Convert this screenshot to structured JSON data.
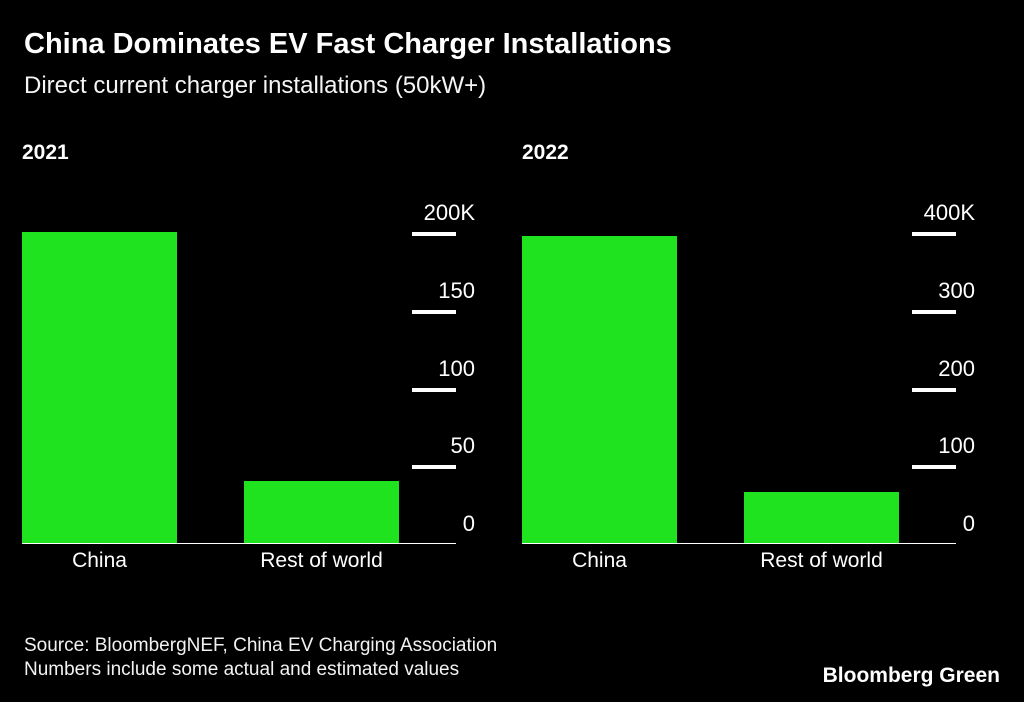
{
  "header": {
    "title": "China Dominates EV Fast Charger Installations",
    "subtitle": "Direct current charger installations (50kW+)"
  },
  "footer": {
    "source_line1": "Source: BloombergNEF, China EV Charging Association",
    "source_line2": "Numbers include some actual and estimated values",
    "brand": "Bloomberg Green"
  },
  "colors": {
    "background": "#000000",
    "bar": "#20e320",
    "text": "#ffffff"
  },
  "chart_data": [
    {
      "type": "bar",
      "title": "2021",
      "unit": "thousand installations",
      "categories": [
        "China",
        "Rest of world"
      ],
      "values": [
        200,
        40
      ],
      "xlabel": "",
      "ylabel": "",
      "ylim": [
        0,
        200
      ],
      "axis_side": "right",
      "grid": false,
      "legend": "none",
      "yticks": [
        {
          "value": 0,
          "label": "0"
        },
        {
          "value": 50,
          "label": "50"
        },
        {
          "value": 100,
          "label": "100"
        },
        {
          "value": 150,
          "label": "150"
        },
        {
          "value": 200,
          "label": "200K"
        }
      ]
    },
    {
      "type": "bar",
      "title": "2022",
      "unit": "thousand installations",
      "categories": [
        "China",
        "Rest of world"
      ],
      "values": [
        395,
        65
      ],
      "xlabel": "",
      "ylabel": "",
      "ylim": [
        0,
        400
      ],
      "axis_side": "right",
      "grid": false,
      "legend": "none",
      "yticks": [
        {
          "value": 0,
          "label": "0"
        },
        {
          "value": 100,
          "label": "100"
        },
        {
          "value": 200,
          "label": "200"
        },
        {
          "value": 300,
          "label": "300"
        },
        {
          "value": 400,
          "label": "400K"
        }
      ]
    }
  ]
}
